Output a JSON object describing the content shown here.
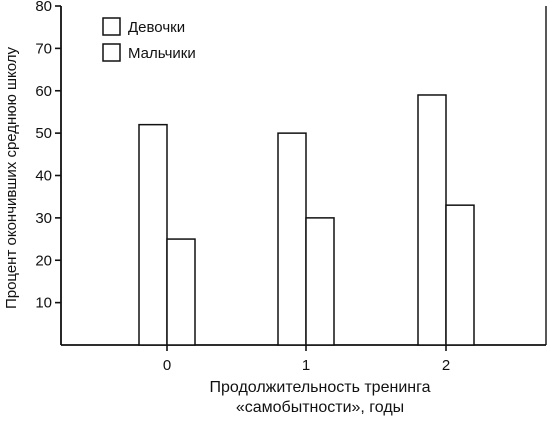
{
  "chart_data": {
    "type": "bar",
    "categories": [
      "0",
      "1",
      "2"
    ],
    "series": [
      {
        "name": "Девочки",
        "values": [
          52,
          50,
          59
        ],
        "color": "#ffffff"
      },
      {
        "name": "Мальчики",
        "values": [
          25,
          30,
          33
        ],
        "color": "#ffffff"
      }
    ],
    "ylabel": "Процент окончивших среднюю школу",
    "xlabel_lines": [
      "Продолжительность тренинга",
      "«самобытности», годы"
    ],
    "ylim": [
      0,
      80
    ],
    "yticks": [
      10,
      20,
      30,
      40,
      50,
      60,
      70,
      80
    ],
    "legend_position": "top-left",
    "grid": false
  }
}
